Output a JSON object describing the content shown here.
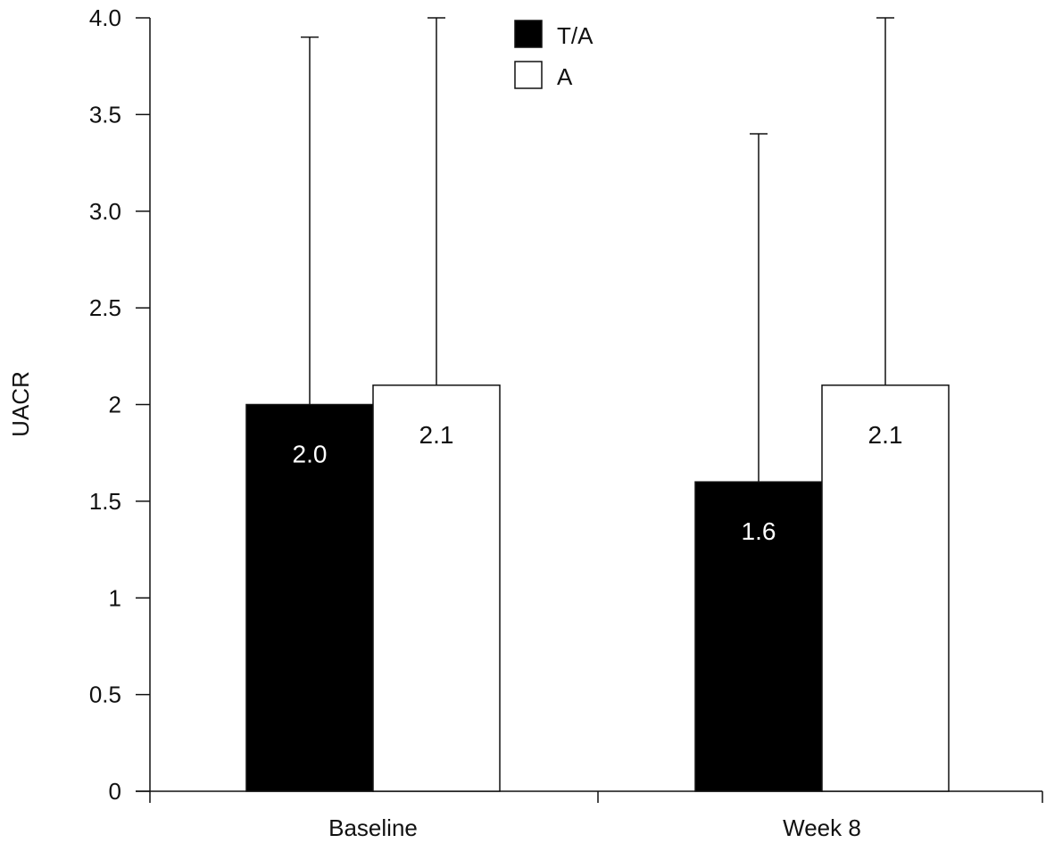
{
  "chart_data": {
    "type": "bar",
    "title": "",
    "xlabel": "",
    "ylabel": "UACR",
    "ylim": [
      0,
      4.0
    ],
    "grid": false,
    "legend_position": "top-center",
    "categories": [
      "Baseline",
      "Week 8"
    ],
    "y_ticks": [
      {
        "value": 0,
        "label": "0"
      },
      {
        "value": 0.5,
        "label": "0.5"
      },
      {
        "value": 1,
        "label": "1"
      },
      {
        "value": 1.5,
        "label": "1.5"
      },
      {
        "value": 2,
        "label": "2"
      },
      {
        "value": 2.5,
        "label": "2.5"
      },
      {
        "value": 3.0,
        "label": "3.0"
      },
      {
        "value": 3.5,
        "label": "3.5"
      },
      {
        "value": 4.0,
        "label": "4.0"
      }
    ],
    "series": [
      {
        "name": "T/A",
        "color": "#000000",
        "values": [
          2.0,
          1.6
        ],
        "error_upper": [
          3.9,
          3.4
        ],
        "data_labels": [
          "2.0",
          "1.6"
        ],
        "label_color": "#ffffff"
      },
      {
        "name": "A",
        "color": "#ffffff",
        "values": [
          2.1,
          2.1
        ],
        "error_upper": [
          4.0,
          4.0
        ],
        "data_labels": [
          "2.1",
          "2.1"
        ],
        "label_color": "#111111"
      }
    ]
  }
}
